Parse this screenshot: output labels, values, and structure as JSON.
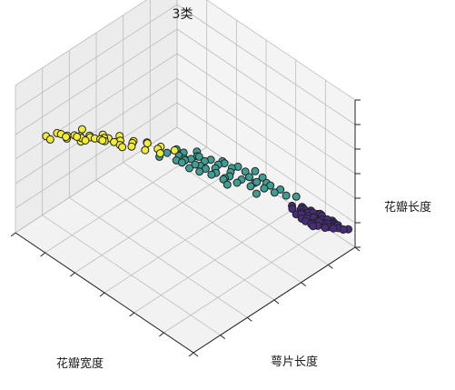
{
  "chart_data": {
    "type": "scatter",
    "projection": "3d",
    "title": "3类",
    "xlabel": "花瓣宽度",
    "ylabel": "萼片长度",
    "zlabel": "花瓣长度",
    "tick_labels": "none",
    "grid": true,
    "pane_color": "#f2f2f2",
    "point_edge_color": "#222222",
    "series": [
      {
        "color": "#f3ec35",
        "points": [
          [
            0.95,
            0.15,
            0.72
          ],
          [
            0.9,
            0.2,
            0.75
          ],
          [
            0.92,
            0.1,
            0.68
          ],
          [
            0.88,
            0.18,
            0.7
          ],
          [
            0.85,
            0.12,
            0.66
          ],
          [
            0.93,
            0.22,
            0.78
          ],
          [
            0.87,
            0.25,
            0.73
          ],
          [
            0.82,
            0.2,
            0.69
          ],
          [
            0.9,
            0.28,
            0.8
          ],
          [
            0.84,
            0.3,
            0.77
          ],
          [
            0.8,
            0.15,
            0.64
          ],
          [
            0.78,
            0.22,
            0.67
          ],
          [
            0.86,
            0.35,
            0.82
          ],
          [
            0.83,
            0.08,
            0.62
          ],
          [
            0.76,
            0.28,
            0.7
          ],
          [
            0.8,
            0.32,
            0.74
          ],
          [
            0.92,
            0.32,
            0.83
          ],
          [
            0.74,
            0.18,
            0.62
          ],
          [
            0.7,
            0.25,
            0.63
          ],
          [
            0.72,
            0.3,
            0.66
          ],
          [
            0.68,
            0.2,
            0.6
          ],
          [
            0.66,
            0.28,
            0.61
          ],
          [
            0.88,
            0.38,
            0.85
          ],
          [
            0.75,
            0.36,
            0.71
          ],
          [
            0.64,
            0.33,
            0.62
          ],
          [
            0.62,
            0.24,
            0.58
          ],
          [
            0.7,
            0.38,
            0.68
          ],
          [
            0.78,
            0.4,
            0.75
          ],
          [
            0.6,
            0.3,
            0.58
          ],
          [
            0.95,
            0.3,
            0.86
          ],
          [
            0.58,
            0.36,
            0.6
          ],
          [
            0.66,
            0.42,
            0.66
          ],
          [
            0.72,
            0.12,
            0.6
          ],
          [
            0.55,
            0.33,
            0.56
          ],
          [
            0.56,
            0.4,
            0.58
          ],
          [
            0.6,
            0.45,
            0.62
          ],
          [
            0.52,
            0.38,
            0.55
          ],
          [
            0.5,
            0.44,
            0.56
          ]
        ]
      },
      {
        "color": "#3e9e94",
        "points": [
          [
            0.55,
            0.4,
            0.52
          ],
          [
            0.5,
            0.45,
            0.5
          ],
          [
            0.48,
            0.38,
            0.48
          ],
          [
            0.45,
            0.42,
            0.47
          ],
          [
            0.52,
            0.5,
            0.54
          ],
          [
            0.42,
            0.46,
            0.46
          ],
          [
            0.46,
            0.52,
            0.5
          ],
          [
            0.4,
            0.4,
            0.44
          ],
          [
            0.44,
            0.56,
            0.49
          ],
          [
            0.38,
            0.5,
            0.45
          ],
          [
            0.5,
            0.58,
            0.53
          ],
          [
            0.36,
            0.44,
            0.42
          ],
          [
            0.42,
            0.6,
            0.48
          ],
          [
            0.34,
            0.54,
            0.43
          ],
          [
            0.4,
            0.36,
            0.43
          ],
          [
            0.47,
            0.62,
            0.52
          ],
          [
            0.32,
            0.48,
            0.4
          ],
          [
            0.38,
            0.64,
            0.46
          ],
          [
            0.3,
            0.58,
            0.41
          ],
          [
            0.44,
            0.66,
            0.5
          ],
          [
            0.35,
            0.68,
            0.45
          ],
          [
            0.28,
            0.52,
            0.38
          ],
          [
            0.33,
            0.6,
            0.42
          ],
          [
            0.4,
            0.7,
            0.48
          ],
          [
            0.26,
            0.62,
            0.39
          ],
          [
            0.3,
            0.72,
            0.43
          ],
          [
            0.36,
            0.74,
            0.46
          ],
          [
            0.24,
            0.56,
            0.36
          ],
          [
            0.28,
            0.66,
            0.4
          ],
          [
            0.32,
            0.78,
            0.45
          ],
          [
            0.22,
            0.68,
            0.37
          ],
          [
            0.26,
            0.76,
            0.41
          ],
          [
            0.38,
            0.56,
            0.45
          ],
          [
            0.2,
            0.62,
            0.35
          ],
          [
            0.24,
            0.72,
            0.38
          ],
          [
            0.48,
            0.48,
            0.51
          ],
          [
            0.34,
            0.42,
            0.42
          ],
          [
            0.3,
            0.82,
            0.44
          ],
          [
            0.22,
            0.78,
            0.37
          ],
          [
            0.43,
            0.52,
            0.47
          ],
          [
            0.37,
            0.46,
            0.44
          ],
          [
            0.41,
            0.64,
            0.47
          ],
          [
            0.29,
            0.7,
            0.4
          ],
          [
            0.25,
            0.84,
            0.4
          ],
          [
            0.46,
            0.7,
            0.51
          ],
          [
            0.53,
            0.55,
            0.55
          ],
          [
            0.39,
            0.8,
            0.48
          ],
          [
            0.21,
            0.86,
            0.38
          ],
          [
            0.44,
            0.44,
            0.46
          ],
          [
            0.27,
            0.5,
            0.37
          ]
        ]
      },
      {
        "color": "#472d7b",
        "points": [
          [
            0.02,
            0.9,
            0.1
          ],
          [
            0.04,
            0.85,
            0.12
          ],
          [
            0.01,
            0.82,
            0.08
          ],
          [
            0.06,
            0.88,
            0.11
          ],
          [
            0.03,
            0.78,
            0.09
          ],
          [
            0.08,
            0.84,
            0.13
          ],
          [
            0.05,
            0.92,
            0.12
          ],
          [
            0.02,
            0.86,
            0.07
          ],
          [
            0.07,
            0.8,
            0.1
          ],
          [
            0.04,
            0.94,
            0.13
          ],
          [
            0.09,
            0.88,
            0.14
          ],
          [
            0.01,
            0.76,
            0.06
          ],
          [
            0.06,
            0.96,
            0.14
          ],
          [
            0.03,
            0.83,
            0.11
          ],
          [
            0.1,
            0.82,
            0.12
          ],
          [
            0.05,
            0.74,
            0.08
          ],
          [
            0.08,
            0.92,
            0.15
          ],
          [
            0.02,
            0.98,
            0.12
          ],
          [
            0.11,
            0.86,
            0.13
          ],
          [
            0.04,
            0.8,
            0.1
          ],
          [
            0.07,
            0.76,
            0.09
          ],
          [
            0.03,
            0.9,
            0.1
          ],
          [
            0.12,
            0.9,
            0.15
          ],
          [
            0.06,
            0.7,
            0.08
          ],
          [
            0.09,
            0.78,
            0.11
          ],
          [
            0.01,
            0.88,
            0.09
          ],
          [
            0.05,
            0.86,
            0.11
          ],
          [
            0.1,
            0.94,
            0.16
          ],
          [
            0.02,
            0.72,
            0.06
          ],
          [
            0.08,
            0.72,
            0.09
          ],
          [
            0.04,
            0.88,
            0.12
          ],
          [
            0.06,
            0.82,
            0.1
          ],
          [
            0.03,
            0.96,
            0.11
          ],
          [
            0.13,
            0.84,
            0.14
          ],
          [
            0.07,
            0.9,
            0.13
          ],
          [
            0.01,
            0.8,
            0.07
          ],
          [
            0.11,
            0.8,
            0.11
          ],
          [
            0.05,
            0.78,
            0.09
          ],
          [
            0.09,
            0.96,
            0.16
          ],
          [
            0.02,
            0.92,
            0.09
          ],
          [
            0.14,
            0.88,
            0.16
          ],
          [
            0.06,
            0.92,
            0.12
          ],
          [
            0.03,
            0.74,
            0.07
          ],
          [
            0.08,
            0.86,
            0.12
          ],
          [
            0.1,
            0.76,
            0.1
          ],
          [
            0.04,
            0.84,
            0.1
          ],
          [
            0.12,
            0.94,
            0.17
          ],
          [
            0.07,
            0.84,
            0.11
          ],
          [
            0.15,
            0.9,
            0.17
          ],
          [
            0.05,
            0.98,
            0.14
          ]
        ]
      }
    ]
  }
}
